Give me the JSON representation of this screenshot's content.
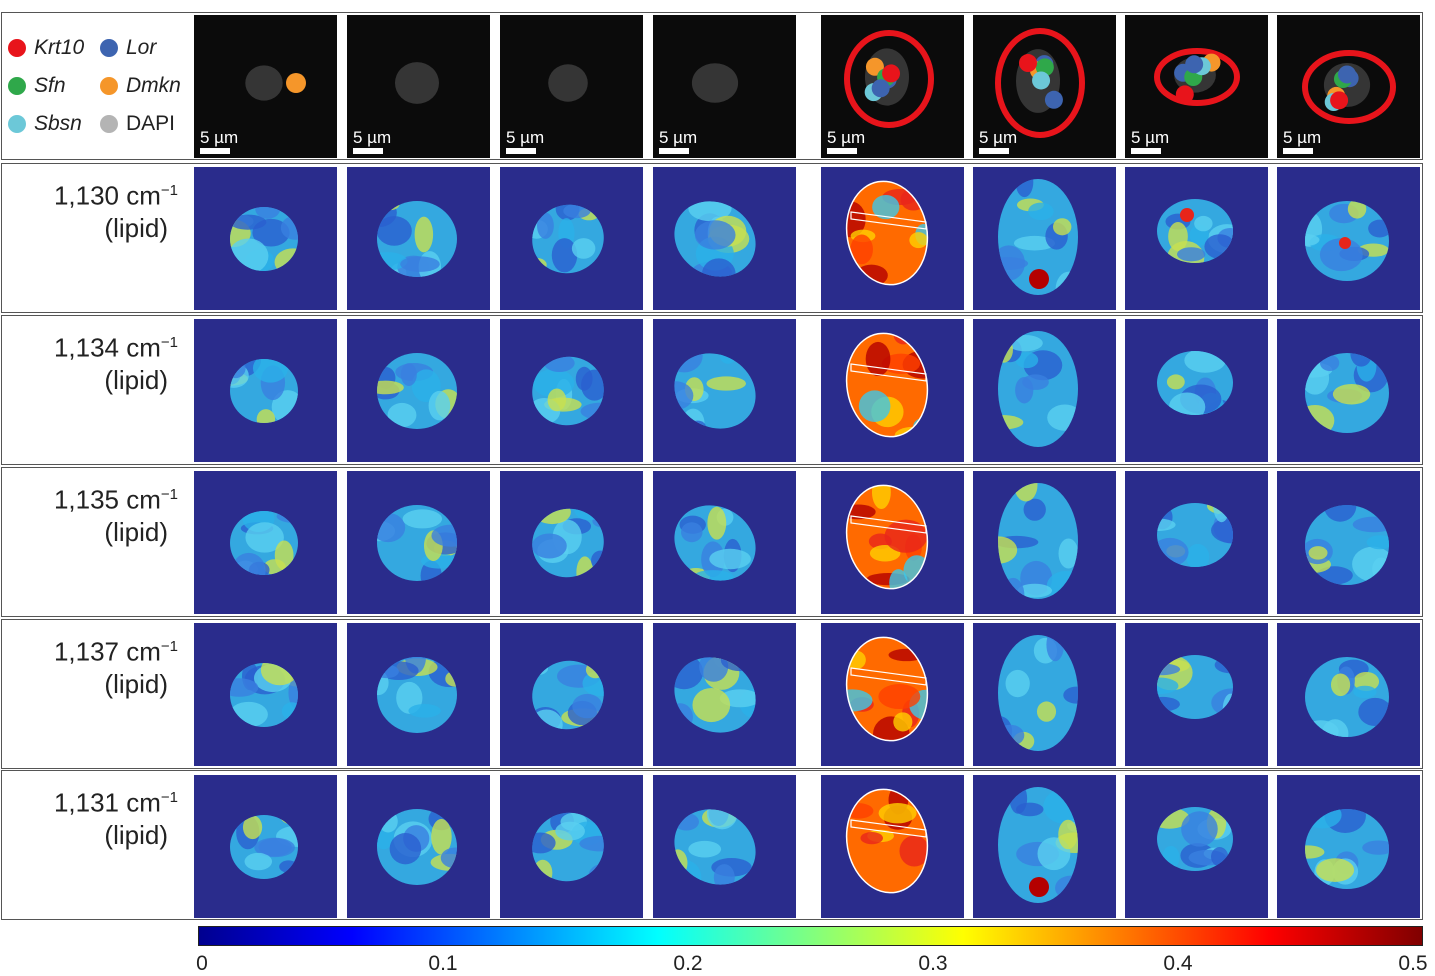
{
  "legend": [
    {
      "label": "Krt10",
      "color": "#e8141b",
      "italic": true
    },
    {
      "label": "Lor",
      "color": "#3d64b0",
      "italic": true
    },
    {
      "label": "Sfn",
      "color": "#2fa84a",
      "italic": true
    },
    {
      "label": "Dmkn",
      "color": "#f5962a",
      "italic": true
    },
    {
      "label": "Sbsn",
      "color": "#6cc8d8",
      "italic": true
    },
    {
      "label": "DAPI",
      "color": "#b4b4b4",
      "italic": false
    }
  ],
  "scale_bar_label": "5 µm",
  "rows": [
    {
      "wavenumber": "1,130 cm",
      "exponent": "−1",
      "type": "(lipid)"
    },
    {
      "wavenumber": "1,134 cm",
      "exponent": "−1",
      "type": "(lipid)"
    },
    {
      "wavenumber": "1,135 cm",
      "exponent": "−1",
      "type": "(lipid)"
    },
    {
      "wavenumber": "1,137 cm",
      "exponent": "−1",
      "type": "(lipid)"
    },
    {
      "wavenumber": "1,131 cm",
      "exponent": "−1",
      "type": "(lipid)"
    }
  ],
  "colorbar": {
    "ticks": [
      "0",
      "0.1",
      "0.2",
      "0.3",
      "0.4",
      "0.5"
    ],
    "min": 0,
    "max": 0.5,
    "colors": [
      "#00008f",
      "#0000ff",
      "#0080ff",
      "#00ffff",
      "#80ff80",
      "#ffff00",
      "#ff8000",
      "#ff0000",
      "#800000"
    ]
  },
  "colors": {
    "background_tile": "#2a2c8c",
    "cell_base": "#34a8e0",
    "hot_cell": "#e8251a",
    "microscopy_bg": "#0b0b0b",
    "circle_outline": "#e8141b"
  }
}
